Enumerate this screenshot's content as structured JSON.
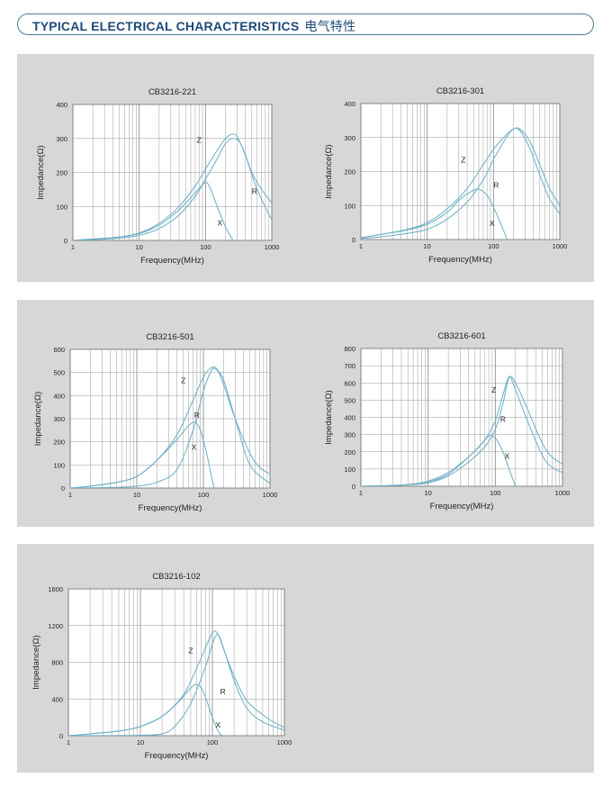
{
  "header": {
    "title": "TYPICAL ELECTRICAL CHARACTERISTICS",
    "title_cn": "电气特性"
  },
  "colors": {
    "curve": "#6aaec4",
    "grid": "#9a9a9a",
    "plot_bg": "#ffffff",
    "panel_bg": "#d7d7d7",
    "header_text": "#1e4a78"
  },
  "chart_data": [
    {
      "type": "line",
      "title": "CB3216-221",
      "xlabel": "Frequency(MHz)",
      "ylabel": "Impedance(Ω)",
      "xscale": "log",
      "xlim": [
        1,
        1000
      ],
      "ylim": [
        0,
        400
      ],
      "xticks": [
        "1",
        "10",
        "100",
        "1000"
      ],
      "yticks": [
        0,
        100,
        200,
        300,
        400
      ],
      "series": [
        {
          "name": "Z",
          "label_pos": [
            80,
            295
          ],
          "points": [
            [
              1,
              0
            ],
            [
              2,
              4
            ],
            [
              5,
              10
            ],
            [
              10,
              22
            ],
            [
              20,
              50
            ],
            [
              40,
              100
            ],
            [
              70,
              160
            ],
            [
              100,
              210
            ],
            [
              150,
              265
            ],
            [
              200,
              300
            ],
            [
              250,
              312
            ],
            [
              300,
              305
            ],
            [
              400,
              250
            ],
            [
              600,
              150
            ],
            [
              1000,
              60
            ]
          ]
        },
        {
          "name": "R",
          "label_pos": [
            550,
            145
          ],
          "points": [
            [
              1,
              0
            ],
            [
              2,
              2
            ],
            [
              5,
              7
            ],
            [
              10,
              15
            ],
            [
              20,
              35
            ],
            [
              40,
              75
            ],
            [
              70,
              130
            ],
            [
              100,
              180
            ],
            [
              150,
              240
            ],
            [
              200,
              285
            ],
            [
              270,
              300
            ],
            [
              350,
              280
            ],
            [
              500,
              200
            ],
            [
              700,
              150
            ],
            [
              1000,
              110
            ]
          ]
        },
        {
          "name": "X",
          "label_pos": [
            165,
            52
          ],
          "points": [
            [
              1,
              0
            ],
            [
              2,
              4
            ],
            [
              5,
              10
            ],
            [
              10,
              20
            ],
            [
              20,
              45
            ],
            [
              40,
              90
            ],
            [
              70,
              140
            ],
            [
              100,
              170
            ],
            [
              120,
              150
            ],
            [
              150,
              100
            ],
            [
              200,
              40
            ],
            [
              260,
              0
            ]
          ]
        }
      ]
    },
    {
      "type": "line",
      "title": "CB3216-301",
      "xlabel": "Frequency(MHz)",
      "ylabel": "Impedance(Ω)",
      "xscale": "log",
      "xlim": [
        1,
        1000
      ],
      "ylim": [
        0,
        400
      ],
      "xticks": [
        "1",
        "10",
        "100",
        "1000"
      ],
      "yticks": [
        0,
        100,
        200,
        300,
        400
      ],
      "series": [
        {
          "name": "Z",
          "label_pos": [
            35,
            235
          ],
          "points": [
            [
              1,
              5
            ],
            [
              2,
              15
            ],
            [
              5,
              30
            ],
            [
              10,
              50
            ],
            [
              20,
              90
            ],
            [
              40,
              150
            ],
            [
              70,
              220
            ],
            [
              100,
              265
            ],
            [
              150,
              305
            ],
            [
              200,
              325
            ],
            [
              250,
              325
            ],
            [
              350,
              290
            ],
            [
              500,
              220
            ],
            [
              700,
              150
            ],
            [
              1000,
              100
            ]
          ]
        },
        {
          "name": "R",
          "label_pos": [
            110,
            160
          ],
          "points": [
            [
              1,
              3
            ],
            [
              2,
              8
            ],
            [
              5,
              18
            ],
            [
              10,
              30
            ],
            [
              20,
              60
            ],
            [
              40,
              110
            ],
            [
              70,
              175
            ],
            [
              100,
              235
            ],
            [
              150,
              295
            ],
            [
              200,
              325
            ],
            [
              250,
              320
            ],
            [
              350,
              270
            ],
            [
              500,
              190
            ],
            [
              700,
              120
            ],
            [
              1000,
              75
            ]
          ]
        },
        {
          "name": "X",
          "label_pos": [
            95,
            48
          ],
          "points": [
            [
              1,
              5
            ],
            [
              2,
              15
            ],
            [
              5,
              28
            ],
            [
              10,
              45
            ],
            [
              20,
              80
            ],
            [
              30,
              115
            ],
            [
              45,
              140
            ],
            [
              60,
              148
            ],
            [
              80,
              130
            ],
            [
              100,
              95
            ],
            [
              130,
              45
            ],
            [
              160,
              0
            ]
          ]
        }
      ]
    },
    {
      "type": "line",
      "title": "CB3216-501",
      "xlabel": "Frequency(MHz)",
      "ylabel": "Impedance(Ω)",
      "xscale": "log",
      "xlim": [
        1,
        1000
      ],
      "ylim": [
        0,
        600
      ],
      "xticks": [
        "1",
        "10",
        "100",
        "1000"
      ],
      "yticks": [
        0,
        100,
        200,
        300,
        400,
        500,
        600
      ],
      "series": [
        {
          "name": "Z",
          "label_pos": [
            50,
            465
          ],
          "points": [
            [
              1,
              0
            ],
            [
              2,
              8
            ],
            [
              5,
              25
            ],
            [
              10,
              50
            ],
            [
              20,
              120
            ],
            [
              40,
              230
            ],
            [
              70,
              380
            ],
            [
              100,
              480
            ],
            [
              130,
              520
            ],
            [
              160,
              515
            ],
            [
              200,
              450
            ],
            [
              300,
              300
            ],
            [
              500,
              150
            ],
            [
              700,
              90
            ],
            [
              1000,
              60
            ]
          ]
        },
        {
          "name": "R",
          "label_pos": [
            80,
            315
          ],
          "points": [
            [
              1,
              0
            ],
            [
              2,
              1
            ],
            [
              5,
              3
            ],
            [
              10,
              8
            ],
            [
              20,
              25
            ],
            [
              40,
              80
            ],
            [
              70,
              250
            ],
            [
              100,
              420
            ],
            [
              130,
              505
            ],
            [
              150,
              515
            ],
            [
              200,
              470
            ],
            [
              300,
              300
            ],
            [
              500,
              100
            ],
            [
              1000,
              20
            ]
          ]
        },
        {
          "name": "X",
          "label_pos": [
            72,
            178
          ],
          "points": [
            [
              1,
              0
            ],
            [
              2,
              8
            ],
            [
              5,
              25
            ],
            [
              10,
              50
            ],
            [
              20,
              120
            ],
            [
              40,
              210
            ],
            [
              60,
              270
            ],
            [
              75,
              285
            ],
            [
              90,
              250
            ],
            [
              110,
              160
            ],
            [
              130,
              60
            ],
            [
              145,
              0
            ]
          ]
        }
      ]
    },
    {
      "type": "line",
      "title": "CB3216-601",
      "xlabel": "Frequency(MHz)",
      "ylabel": "Impedance(Ω)",
      "xscale": "log",
      "xlim": [
        1,
        1000
      ],
      "ylim": [
        0,
        800
      ],
      "xticks": [
        "1",
        "10",
        "100",
        "1000"
      ],
      "yticks": [
        0,
        100,
        200,
        300,
        400,
        500,
        600,
        700,
        800
      ],
      "series": [
        {
          "name": "Z",
          "label_pos": [
            95,
            560
          ],
          "points": [
            [
              1,
              0
            ],
            [
              2,
              3
            ],
            [
              5,
              10
            ],
            [
              10,
              30
            ],
            [
              20,
              80
            ],
            [
              40,
              170
            ],
            [
              70,
              270
            ],
            [
              100,
              380
            ],
            [
              130,
              530
            ],
            [
              160,
              635
            ],
            [
              200,
              600
            ],
            [
              300,
              450
            ],
            [
              500,
              250
            ],
            [
              700,
              170
            ],
            [
              1000,
              130
            ]
          ]
        },
        {
          "name": "R",
          "label_pos": [
            130,
            390
          ],
          "points": [
            [
              1,
              0
            ],
            [
              2,
              2
            ],
            [
              5,
              8
            ],
            [
              10,
              20
            ],
            [
              20,
              60
            ],
            [
              40,
              140
            ],
            [
              70,
              230
            ],
            [
              100,
              330
            ],
            [
              130,
              480
            ],
            [
              160,
              630
            ],
            [
              200,
              560
            ],
            [
              300,
              380
            ],
            [
              500,
              180
            ],
            [
              700,
              110
            ],
            [
              1000,
              80
            ]
          ]
        },
        {
          "name": "X",
          "label_pos": [
            150,
            175
          ],
          "points": [
            [
              1,
              0
            ],
            [
              2,
              2
            ],
            [
              5,
              10
            ],
            [
              10,
              25
            ],
            [
              20,
              70
            ],
            [
              40,
              170
            ],
            [
              60,
              240
            ],
            [
              80,
              290
            ],
            [
              100,
              280
            ],
            [
              130,
              200
            ],
            [
              160,
              100
            ],
            [
              200,
              0
            ]
          ]
        }
      ]
    },
    {
      "type": "line",
      "title": "CB3216-102",
      "xlabel": "Frequency(MHz)",
      "ylabel": "Impedance(Ω)",
      "xscale": "log",
      "xlim": [
        1,
        1000
      ],
      "ylim": [
        0,
        1600
      ],
      "xticks": [
        "1",
        "10",
        "100",
        "1000"
      ],
      "yticks": [
        0,
        400,
        800,
        1200,
        1600
      ],
      "series": [
        {
          "name": "Z",
          "label_pos": [
            50,
            930
          ],
          "points": [
            [
              1,
              0
            ],
            [
              2,
              20
            ],
            [
              5,
              50
            ],
            [
              10,
              100
            ],
            [
              20,
              210
            ],
            [
              40,
              450
            ],
            [
              70,
              850
            ],
            [
              100,
              1120
            ],
            [
              120,
              1100
            ],
            [
              150,
              900
            ],
            [
              200,
              650
            ],
            [
              300,
              380
            ],
            [
              500,
              230
            ],
            [
              700,
              150
            ],
            [
              1000,
              90
            ]
          ]
        },
        {
          "name": "R",
          "label_pos": [
            140,
            480
          ],
          "points": [
            [
              1,
              0
            ],
            [
              5,
              2
            ],
            [
              10,
              5
            ],
            [
              20,
              20
            ],
            [
              30,
              100
            ],
            [
              50,
              350
            ],
            [
              80,
              750
            ],
            [
              100,
              1000
            ],
            [
              120,
              1100
            ],
            [
              150,
              900
            ],
            [
              200,
              600
            ],
            [
              300,
              300
            ],
            [
              500,
              150
            ],
            [
              1000,
              60
            ]
          ]
        },
        {
          "name": "X",
          "label_pos": [
            120,
            120
          ],
          "points": [
            [
              1,
              0
            ],
            [
              2,
              20
            ],
            [
              5,
              50
            ],
            [
              10,
              100
            ],
            [
              20,
              210
            ],
            [
              35,
              380
            ],
            [
              50,
              520
            ],
            [
              60,
              560
            ],
            [
              70,
              520
            ],
            [
              80,
              420
            ],
            [
              100,
              200
            ],
            [
              120,
              50
            ],
            [
              135,
              0
            ]
          ]
        }
      ]
    }
  ]
}
